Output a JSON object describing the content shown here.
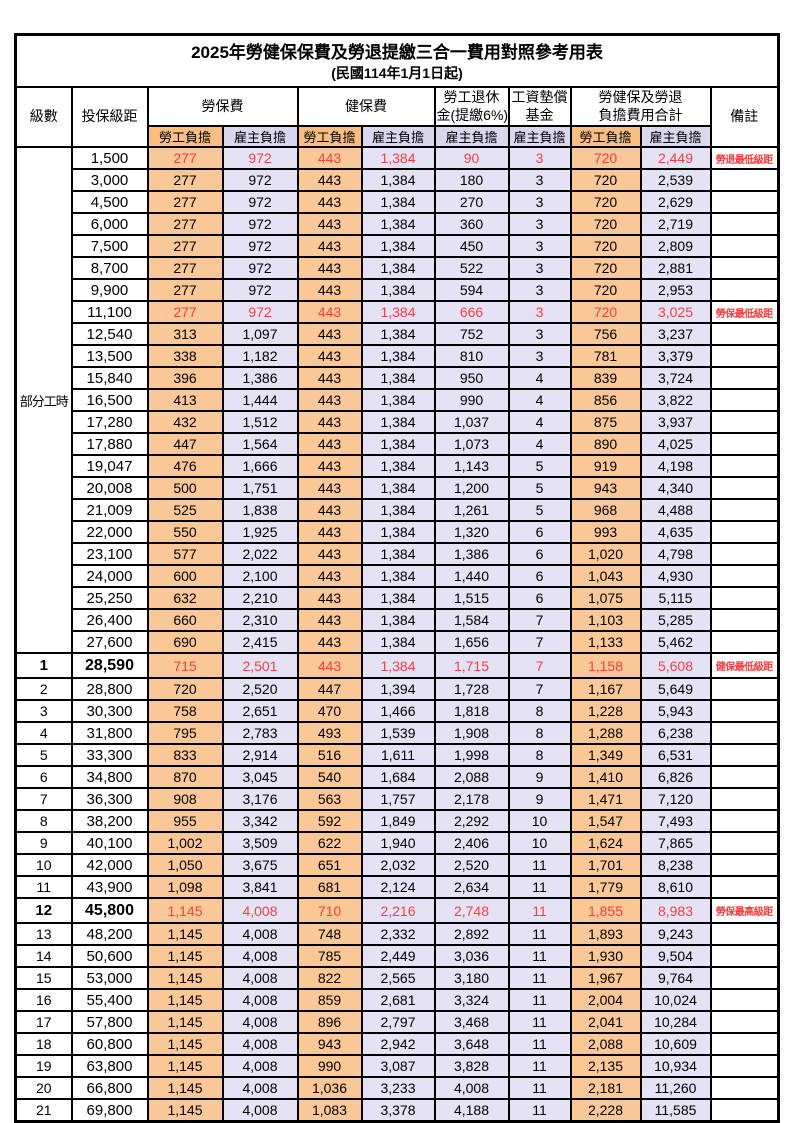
{
  "title": {
    "line1": "2025年勞健保保費及勞退提繳三合一費用對照參考用表",
    "line2": "(民國114年1月1日起)"
  },
  "colors": {
    "employee_header_bg": "#F9BE80",
    "employer_header_bg": "#D9D6EE",
    "employee_body_bg": "#FAC896",
    "employer_body_bg": "#E4E2F4",
    "highlight_text": "#FC3D3D",
    "border": "#000000",
    "background": "#FFFFFF"
  },
  "table": {
    "headers": {
      "level": "級數",
      "salary": "投保級距",
      "labor": "勞保費",
      "health": "健保費",
      "pension1": "勞工退休",
      "pension2": "金(提繳6%)",
      "fund1": "工資墊償",
      "fund2": "基金",
      "total1": "勞健保及勞退",
      "total2": "負擔費用合計",
      "remark": "備註",
      "employee": "勞工負擔",
      "employer": "雇主負擔"
    },
    "group_label": "部分工時",
    "group_rowspan": 23,
    "value_column_names": [
      "labor-employee",
      "labor-employer",
      "health-employee",
      "health-employer",
      "pension-employer",
      "wage-fund-employer",
      "total-employee",
      "total-employer"
    ],
    "rows": [
      {
        "level": "",
        "salary": "1,500",
        "v": [
          "277",
          "972",
          "443",
          "1,384",
          "90",
          "3",
          "720",
          "2,449"
        ],
        "remark": "勞退最低級距",
        "red": true,
        "em": false
      },
      {
        "level": "",
        "salary": "3,000",
        "v": [
          "277",
          "972",
          "443",
          "1,384",
          "180",
          "3",
          "720",
          "2,539"
        ],
        "remark": "",
        "red": false,
        "em": false
      },
      {
        "level": "",
        "salary": "4,500",
        "v": [
          "277",
          "972",
          "443",
          "1,384",
          "270",
          "3",
          "720",
          "2,629"
        ],
        "remark": "",
        "red": false,
        "em": false
      },
      {
        "level": "",
        "salary": "6,000",
        "v": [
          "277",
          "972",
          "443",
          "1,384",
          "360",
          "3",
          "720",
          "2,719"
        ],
        "remark": "",
        "red": false,
        "em": false
      },
      {
        "level": "",
        "salary": "7,500",
        "v": [
          "277",
          "972",
          "443",
          "1,384",
          "450",
          "3",
          "720",
          "2,809"
        ],
        "remark": "",
        "red": false,
        "em": false
      },
      {
        "level": "",
        "salary": "8,700",
        "v": [
          "277",
          "972",
          "443",
          "1,384",
          "522",
          "3",
          "720",
          "2,881"
        ],
        "remark": "",
        "red": false,
        "em": false
      },
      {
        "level": "",
        "salary": "9,900",
        "v": [
          "277",
          "972",
          "443",
          "1,384",
          "594",
          "3",
          "720",
          "2,953"
        ],
        "remark": "",
        "red": false,
        "em": false
      },
      {
        "level": "",
        "salary": "11,100",
        "v": [
          "277",
          "972",
          "443",
          "1,384",
          "666",
          "3",
          "720",
          "3,025"
        ],
        "remark": "勞保最低級距",
        "red": true,
        "em": false
      },
      {
        "level": "",
        "salary": "12,540",
        "v": [
          "313",
          "1,097",
          "443",
          "1,384",
          "752",
          "3",
          "756",
          "3,237"
        ],
        "remark": "",
        "red": false,
        "em": false
      },
      {
        "level": "",
        "salary": "13,500",
        "v": [
          "338",
          "1,182",
          "443",
          "1,384",
          "810",
          "3",
          "781",
          "3,379"
        ],
        "remark": "",
        "red": false,
        "em": false
      },
      {
        "level": "",
        "salary": "15,840",
        "v": [
          "396",
          "1,386",
          "443",
          "1,384",
          "950",
          "4",
          "839",
          "3,724"
        ],
        "remark": "",
        "red": false,
        "em": false
      },
      {
        "level": "",
        "salary": "16,500",
        "v": [
          "413",
          "1,444",
          "443",
          "1,384",
          "990",
          "4",
          "856",
          "3,822"
        ],
        "remark": "",
        "red": false,
        "em": false
      },
      {
        "level": "",
        "salary": "17,280",
        "v": [
          "432",
          "1,512",
          "443",
          "1,384",
          "1,037",
          "4",
          "875",
          "3,937"
        ],
        "remark": "",
        "red": false,
        "em": false
      },
      {
        "level": "",
        "salary": "17,880",
        "v": [
          "447",
          "1,564",
          "443",
          "1,384",
          "1,073",
          "4",
          "890",
          "4,025"
        ],
        "remark": "",
        "red": false,
        "em": false
      },
      {
        "level": "",
        "salary": "19,047",
        "v": [
          "476",
          "1,666",
          "443",
          "1,384",
          "1,143",
          "5",
          "919",
          "4,198"
        ],
        "remark": "",
        "red": false,
        "em": false
      },
      {
        "level": "",
        "salary": "20,008",
        "v": [
          "500",
          "1,751",
          "443",
          "1,384",
          "1,200",
          "5",
          "943",
          "4,340"
        ],
        "remark": "",
        "red": false,
        "em": false
      },
      {
        "level": "",
        "salary": "21,009",
        "v": [
          "525",
          "1,838",
          "443",
          "1,384",
          "1,261",
          "5",
          "968",
          "4,488"
        ],
        "remark": "",
        "red": false,
        "em": false
      },
      {
        "level": "",
        "salary": "22,000",
        "v": [
          "550",
          "1,925",
          "443",
          "1,384",
          "1,320",
          "6",
          "993",
          "4,635"
        ],
        "remark": "",
        "red": false,
        "em": false
      },
      {
        "level": "",
        "salary": "23,100",
        "v": [
          "577",
          "2,022",
          "443",
          "1,384",
          "1,386",
          "6",
          "1,020",
          "4,798"
        ],
        "remark": "",
        "red": false,
        "em": false
      },
      {
        "level": "",
        "salary": "24,000",
        "v": [
          "600",
          "2,100",
          "443",
          "1,384",
          "1,440",
          "6",
          "1,043",
          "4,930"
        ],
        "remark": "",
        "red": false,
        "em": false
      },
      {
        "level": "",
        "salary": "25,250",
        "v": [
          "632",
          "2,210",
          "443",
          "1,384",
          "1,515",
          "6",
          "1,075",
          "5,115"
        ],
        "remark": "",
        "red": false,
        "em": false
      },
      {
        "level": "",
        "salary": "26,400",
        "v": [
          "660",
          "2,310",
          "443",
          "1,384",
          "1,584",
          "7",
          "1,103",
          "5,285"
        ],
        "remark": "",
        "red": false,
        "em": false
      },
      {
        "level": "",
        "salary": "27,600",
        "v": [
          "690",
          "2,415",
          "443",
          "1,384",
          "1,656",
          "7",
          "1,133",
          "5,462"
        ],
        "remark": "",
        "red": false,
        "em": false
      },
      {
        "level": "1",
        "salary": "28,590",
        "v": [
          "715",
          "2,501",
          "443",
          "1,384",
          "1,715",
          "7",
          "1,158",
          "5,608"
        ],
        "remark": "健保最低級距",
        "red": true,
        "em": true
      },
      {
        "level": "2",
        "salary": "28,800",
        "v": [
          "720",
          "2,520",
          "447",
          "1,394",
          "1,728",
          "7",
          "1,167",
          "5,649"
        ],
        "remark": "",
        "red": false,
        "em": false
      },
      {
        "level": "3",
        "salary": "30,300",
        "v": [
          "758",
          "2,651",
          "470",
          "1,466",
          "1,818",
          "8",
          "1,228",
          "5,943"
        ],
        "remark": "",
        "red": false,
        "em": false
      },
      {
        "level": "4",
        "salary": "31,800",
        "v": [
          "795",
          "2,783",
          "493",
          "1,539",
          "1,908",
          "8",
          "1,288",
          "6,238"
        ],
        "remark": "",
        "red": false,
        "em": false
      },
      {
        "level": "5",
        "salary": "33,300",
        "v": [
          "833",
          "2,914",
          "516",
          "1,611",
          "1,998",
          "8",
          "1,349",
          "6,531"
        ],
        "remark": "",
        "red": false,
        "em": false
      },
      {
        "level": "6",
        "salary": "34,800",
        "v": [
          "870",
          "3,045",
          "540",
          "1,684",
          "2,088",
          "9",
          "1,410",
          "6,826"
        ],
        "remark": "",
        "red": false,
        "em": false
      },
      {
        "level": "7",
        "salary": "36,300",
        "v": [
          "908",
          "3,176",
          "563",
          "1,757",
          "2,178",
          "9",
          "1,471",
          "7,120"
        ],
        "remark": "",
        "red": false,
        "em": false
      },
      {
        "level": "8",
        "salary": "38,200",
        "v": [
          "955",
          "3,342",
          "592",
          "1,849",
          "2,292",
          "10",
          "1,547",
          "7,493"
        ],
        "remark": "",
        "red": false,
        "em": false
      },
      {
        "level": "9",
        "salary": "40,100",
        "v": [
          "1,002",
          "3,509",
          "622",
          "1,940",
          "2,406",
          "10",
          "1,624",
          "7,865"
        ],
        "remark": "",
        "red": false,
        "em": false
      },
      {
        "level": "10",
        "salary": "42,000",
        "v": [
          "1,050",
          "3,675",
          "651",
          "2,032",
          "2,520",
          "11",
          "1,701",
          "8,238"
        ],
        "remark": "",
        "red": false,
        "em": false
      },
      {
        "level": "11",
        "salary": "43,900",
        "v": [
          "1,098",
          "3,841",
          "681",
          "2,124",
          "2,634",
          "11",
          "1,779",
          "8,610"
        ],
        "remark": "",
        "red": false,
        "em": false
      },
      {
        "level": "12",
        "salary": "45,800",
        "v": [
          "1,145",
          "4,008",
          "710",
          "2,216",
          "2,748",
          "11",
          "1,855",
          "8,983"
        ],
        "remark": "勞保最高級距",
        "red": true,
        "em": true
      },
      {
        "level": "13",
        "salary": "48,200",
        "v": [
          "1,145",
          "4,008",
          "748",
          "2,332",
          "2,892",
          "11",
          "1,893",
          "9,243"
        ],
        "remark": "",
        "red": false,
        "em": false
      },
      {
        "level": "14",
        "salary": "50,600",
        "v": [
          "1,145",
          "4,008",
          "785",
          "2,449",
          "3,036",
          "11",
          "1,930",
          "9,504"
        ],
        "remark": "",
        "red": false,
        "em": false
      },
      {
        "level": "15",
        "salary": "53,000",
        "v": [
          "1,145",
          "4,008",
          "822",
          "2,565",
          "3,180",
          "11",
          "1,967",
          "9,764"
        ],
        "remark": "",
        "red": false,
        "em": false
      },
      {
        "level": "16",
        "salary": "55,400",
        "v": [
          "1,145",
          "4,008",
          "859",
          "2,681",
          "3,324",
          "11",
          "2,004",
          "10,024"
        ],
        "remark": "",
        "red": false,
        "em": false
      },
      {
        "level": "17",
        "salary": "57,800",
        "v": [
          "1,145",
          "4,008",
          "896",
          "2,797",
          "3,468",
          "11",
          "2,041",
          "10,284"
        ],
        "remark": "",
        "red": false,
        "em": false
      },
      {
        "level": "18",
        "salary": "60,800",
        "v": [
          "1,145",
          "4,008",
          "943",
          "2,942",
          "3,648",
          "11",
          "2,088",
          "10,609"
        ],
        "remark": "",
        "red": false,
        "em": false
      },
      {
        "level": "19",
        "salary": "63,800",
        "v": [
          "1,145",
          "4,008",
          "990",
          "3,087",
          "3,828",
          "11",
          "2,135",
          "10,934"
        ],
        "remark": "",
        "red": false,
        "em": false
      },
      {
        "level": "20",
        "salary": "66,800",
        "v": [
          "1,145",
          "4,008",
          "1,036",
          "3,233",
          "4,008",
          "11",
          "2,181",
          "11,260"
        ],
        "remark": "",
        "red": false,
        "em": false
      },
      {
        "level": "21",
        "salary": "69,800",
        "v": [
          "1,145",
          "4,008",
          "1,083",
          "3,378",
          "4,188",
          "11",
          "2,228",
          "11,585"
        ],
        "remark": "",
        "red": false,
        "em": false
      }
    ]
  }
}
